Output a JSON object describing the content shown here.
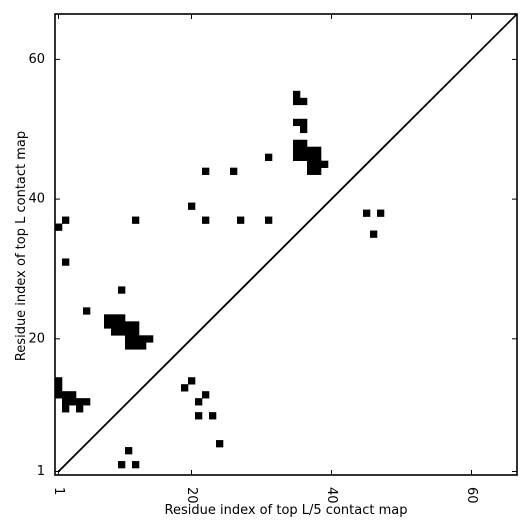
{
  "chart_data": {
    "type": "heatmap",
    "title": "",
    "xlabel": "Residue index of top L/5 contact map",
    "ylabel": "Residue index of top L contact map",
    "xlim": [
      0.5,
      66.5
    ],
    "ylim": [
      0.5,
      66.5
    ],
    "x_ticks": [
      1,
      20,
      40,
      60
    ],
    "y_ticks": [
      1,
      20,
      40,
      60
    ],
    "x_tick_labels": [
      "1",
      "20",
      "40",
      "60"
    ],
    "y_tick_labels": [
      "1",
      "20",
      "40",
      "60"
    ],
    "x_tick_rotation": -90,
    "grid": false,
    "legend": "none",
    "diagonal_line": true,
    "cell_color": "#000000",
    "background_color": "#ffffff",
    "contacts_top_L": [
      [
        1,
        36
      ],
      [
        2,
        37
      ],
      [
        2,
        31
      ],
      [
        5,
        24
      ],
      [
        10,
        27
      ],
      [
        8,
        22
      ],
      [
        9,
        22
      ],
      [
        10,
        22
      ],
      [
        8,
        23
      ],
      [
        9,
        23
      ],
      [
        10,
        23
      ],
      [
        9,
        21
      ],
      [
        10,
        21
      ],
      [
        11,
        21
      ],
      [
        12,
        21
      ],
      [
        11,
        22
      ],
      [
        12,
        22
      ],
      [
        11,
        20
      ],
      [
        12,
        20
      ],
      [
        13,
        20
      ],
      [
        14,
        20
      ],
      [
        11,
        19
      ],
      [
        12,
        19
      ],
      [
        13,
        19
      ],
      [
        12,
        37
      ],
      [
        20,
        39
      ],
      [
        22,
        44
      ],
      [
        22,
        37
      ],
      [
        26,
        44
      ],
      [
        27,
        37
      ],
      [
        31,
        46
      ],
      [
        31,
        37
      ],
      [
        35,
        55
      ],
      [
        35,
        54
      ],
      [
        36,
        54
      ],
      [
        35,
        51
      ],
      [
        36,
        51
      ],
      [
        36,
        50
      ],
      [
        35,
        48
      ],
      [
        36,
        48
      ],
      [
        35,
        47
      ],
      [
        36,
        47
      ],
      [
        37,
        47
      ],
      [
        38,
        47
      ],
      [
        35,
        46
      ],
      [
        36,
        46
      ],
      [
        37,
        46
      ],
      [
        38,
        46
      ],
      [
        37,
        45
      ],
      [
        38,
        45
      ],
      [
        39,
        45
      ],
      [
        37,
        44
      ],
      [
        38,
        44
      ],
      [
        45,
        38
      ],
      [
        47,
        38
      ],
      [
        46,
        35
      ]
    ],
    "contacts_top_L5": [
      [
        1,
        14
      ],
      [
        1,
        13
      ],
      [
        1,
        12
      ],
      [
        2,
        12
      ],
      [
        3,
        12
      ],
      [
        2,
        11
      ],
      [
        3,
        11
      ],
      [
        4,
        11
      ],
      [
        5,
        11
      ],
      [
        2,
        10
      ],
      [
        4,
        10
      ],
      [
        11,
        4
      ],
      [
        10,
        2
      ],
      [
        12,
        2
      ],
      [
        19,
        13
      ],
      [
        20,
        14
      ],
      [
        21,
        11
      ],
      [
        22,
        12
      ],
      [
        21,
        9
      ],
      [
        23,
        9
      ],
      [
        24,
        5
      ]
    ]
  }
}
